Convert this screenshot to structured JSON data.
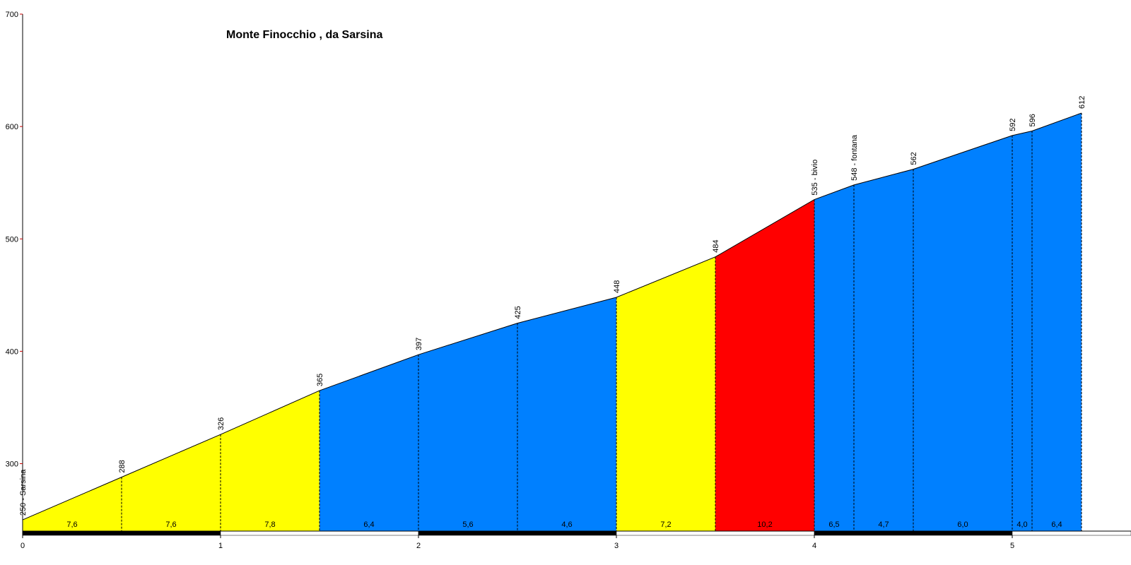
{
  "chart_data": {
    "type": "area",
    "title": "Monte Finocchio , da Sarsina",
    "x": [
      0,
      0.5,
      1,
      1.5,
      2,
      2.5,
      3,
      3.5,
      4,
      4.2,
      4.5,
      5,
      5.1,
      5.35
    ],
    "values": [
      250,
      288,
      326,
      365,
      397,
      425,
      448,
      484,
      535,
      548,
      562,
      592,
      596,
      612
    ],
    "value_labels": [
      "250 - Sarsina",
      "288",
      "326",
      "365",
      "397",
      "425",
      "448",
      "484",
      "535 - bivio",
      "548 - fontana",
      "562",
      "592",
      "596",
      "612"
    ],
    "segment_labels": [
      "7,6",
      "7,6",
      "7,8",
      "6,4",
      "5,6",
      "4,6",
      "7,2",
      "10,2",
      "6,5",
      "4,7",
      "6,0",
      "4,0",
      "6,4"
    ],
    "segment_colors": [
      "#ffff00",
      "#ffff00",
      "#ffff00",
      "#0080ff",
      "#0080ff",
      "#0080ff",
      "#ffff00",
      "#ff0000",
      "#0080ff",
      "#0080ff",
      "#0080ff",
      "#0080ff",
      "#0080ff"
    ],
    "xlim": [
      0,
      5.6
    ],
    "xticks": [
      0,
      1,
      2,
      3,
      4,
      5
    ],
    "ylim": [
      240,
      700
    ],
    "yticks": [
      300,
      400,
      500,
      600,
      700
    ]
  }
}
